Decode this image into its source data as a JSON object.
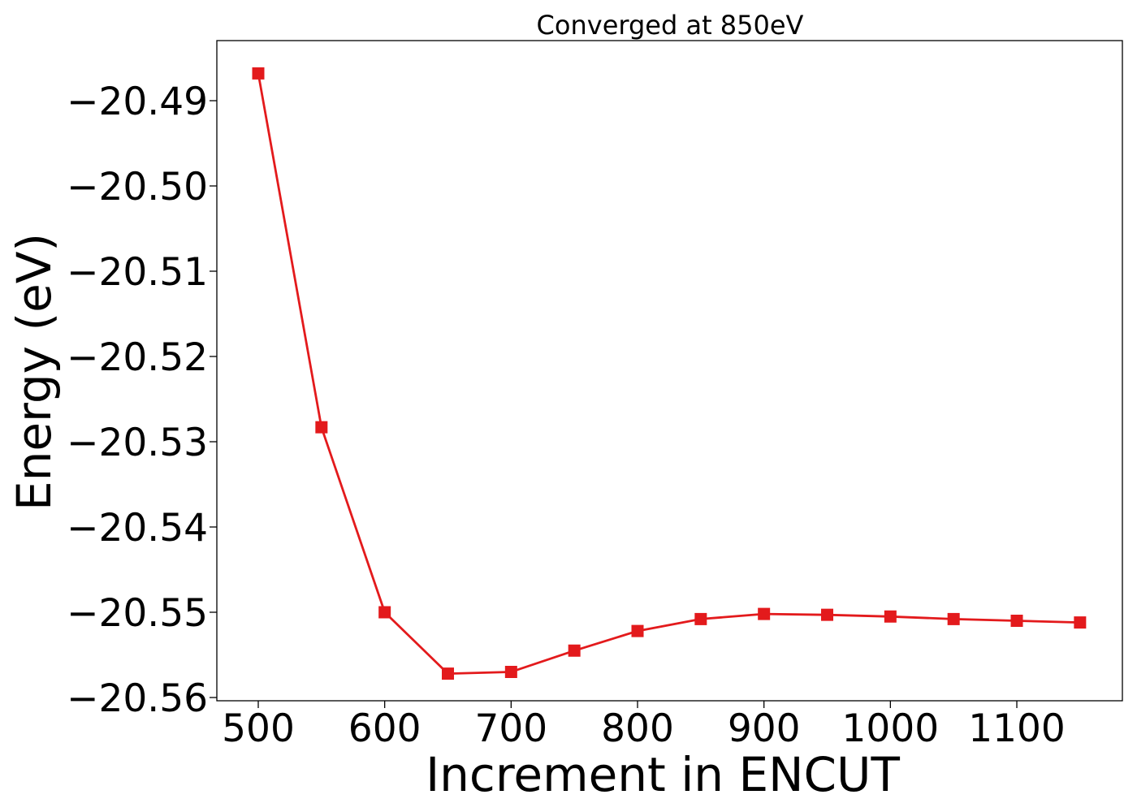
{
  "chart_data": {
    "type": "line",
    "title": "Converged at 850eV",
    "xlabel": "Increment in ENCUT",
    "ylabel": "Energy (eV)",
    "xlim": [
      465,
      1182
    ],
    "ylim": [
      -20.5607,
      -20.4834
    ],
    "x_ticks": [
      500,
      600,
      700,
      800,
      900,
      1000,
      1100
    ],
    "x_tick_labels": [
      "500",
      "600",
      "700",
      "800",
      "900",
      "1000",
      "1100"
    ],
    "y_ticks": [
      -20.49,
      -20.5,
      -20.51,
      -20.52,
      -20.53,
      -20.54,
      -20.55,
      -20.56
    ],
    "y_tick_labels": [
      "−20.49",
      "−20.50",
      "−20.51",
      "−20.52",
      "−20.53",
      "−20.54",
      "−20.55",
      "−20.56"
    ],
    "grid": false,
    "legend": "none",
    "series": [
      {
        "color": "#e31a1c",
        "marker": "square",
        "x": [
          500,
          550,
          600,
          650,
          700,
          750,
          800,
          850,
          900,
          950,
          1000,
          1050,
          1100,
          1150
        ],
        "y": [
          -20.4868,
          -20.5283,
          -20.55,
          -20.5572,
          -20.557,
          -20.5545,
          -20.5522,
          -20.5508,
          -20.5502,
          -20.5503,
          -20.5505,
          -20.5508,
          -20.551,
          -20.5512
        ]
      }
    ]
  }
}
